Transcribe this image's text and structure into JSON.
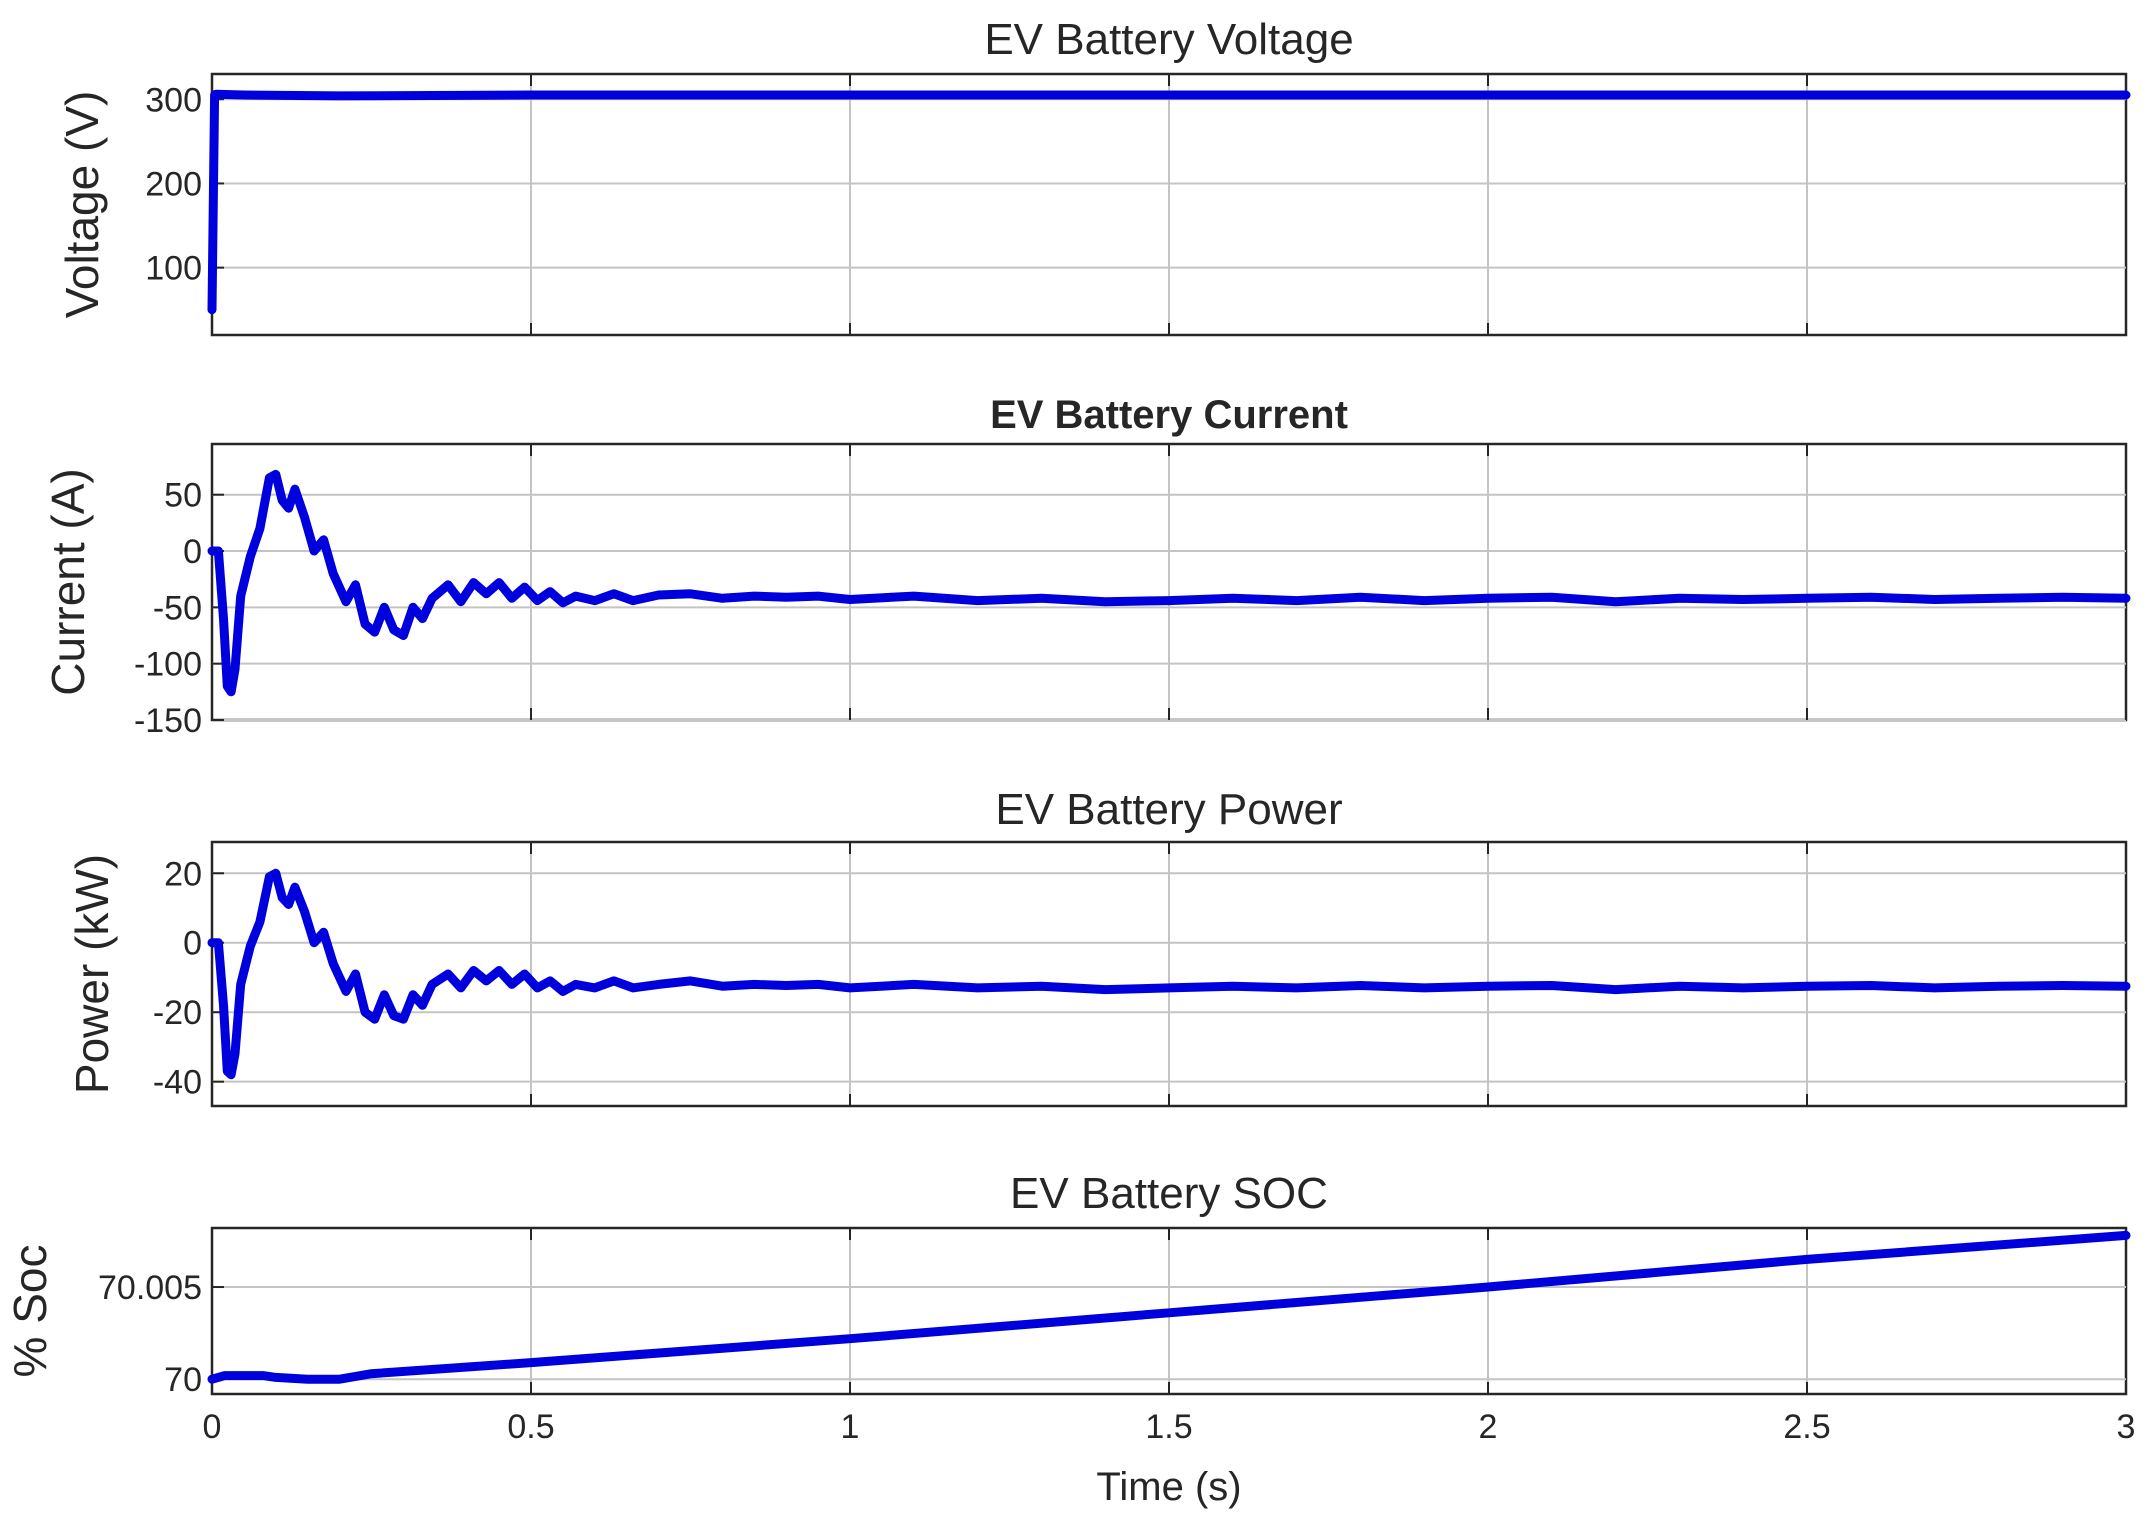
{
  "chart_data": [
    {
      "type": "line",
      "title": "EV Battery Voltage",
      "title_bold": false,
      "xlabel": "",
      "ylabel": "Voltage (V)",
      "xlim": [
        0,
        3
      ],
      "ylim": [
        20,
        330
      ],
      "xticks": [
        0,
        0.5,
        1,
        1.5,
        2,
        2.5,
        3
      ],
      "xticklabels": [],
      "yticks": [
        100,
        200,
        300
      ],
      "yticklabels": [
        "100",
        "200",
        "300"
      ],
      "grid": true,
      "color": "#0000dd",
      "x": [
        0,
        0.004,
        0.006,
        0.05,
        0.2,
        0.5,
        1,
        1.5,
        2,
        2.5,
        3
      ],
      "y": [
        50,
        305,
        306,
        305,
        304,
        305,
        305,
        305,
        305,
        305,
        305
      ]
    },
    {
      "type": "line",
      "title": "EV Battery Current",
      "title_bold": true,
      "xlabel": "",
      "ylabel": "Current (A)",
      "xlim": [
        0,
        3
      ],
      "ylim": [
        -150,
        95
      ],
      "xticks": [
        0,
        0.5,
        1,
        1.5,
        2,
        2.5,
        3
      ],
      "xticklabels": [],
      "yticks": [
        -150,
        -100,
        -50,
        0,
        50
      ],
      "yticklabels": [
        "-150",
        "-100",
        "-50",
        "0",
        "50"
      ],
      "grid": true,
      "color": "#0000dd",
      "x": [
        0,
        0.01,
        0.018,
        0.024,
        0.03,
        0.036,
        0.045,
        0.06,
        0.075,
        0.09,
        0.1,
        0.11,
        0.12,
        0.13,
        0.145,
        0.16,
        0.175,
        0.19,
        0.21,
        0.225,
        0.24,
        0.255,
        0.27,
        0.285,
        0.3,
        0.315,
        0.33,
        0.345,
        0.37,
        0.39,
        0.41,
        0.43,
        0.45,
        0.47,
        0.49,
        0.51,
        0.53,
        0.55,
        0.57,
        0.6,
        0.63,
        0.66,
        0.7,
        0.75,
        0.8,
        0.85,
        0.9,
        0.95,
        1.0,
        1.1,
        1.2,
        1.3,
        1.4,
        1.5,
        1.6,
        1.7,
        1.8,
        1.9,
        2.0,
        2.1,
        2.2,
        2.3,
        2.4,
        2.5,
        2.6,
        2.7,
        2.8,
        2.9,
        3.0
      ],
      "y": [
        0,
        0,
        -60,
        -120,
        -125,
        -105,
        -40,
        -5,
        20,
        65,
        68,
        45,
        38,
        55,
        30,
        0,
        10,
        -20,
        -45,
        -30,
        -65,
        -72,
        -50,
        -70,
        -75,
        -50,
        -60,
        -42,
        -30,
        -45,
        -28,
        -38,
        -28,
        -42,
        -32,
        -44,
        -36,
        -46,
        -40,
        -44,
        -38,
        -44,
        -39,
        -38,
        -42,
        -40,
        -41,
        -40,
        -43,
        -40,
        -44,
        -42,
        -45,
        -44,
        -42,
        -44,
        -41,
        -44,
        -42,
        -41,
        -45,
        -42,
        -43,
        -42,
        -41,
        -43,
        -42,
        -41,
        -42
      ]
    },
    {
      "type": "line",
      "title": "EV Battery Power",
      "title_bold": false,
      "xlabel": "",
      "ylabel": "Power (kW)",
      "xlim": [
        0,
        3
      ],
      "ylim": [
        -47,
        29
      ],
      "xticks": [
        0,
        0.5,
        1,
        1.5,
        2,
        2.5,
        3
      ],
      "xticklabels": [],
      "yticks": [
        -40,
        -20,
        0,
        20
      ],
      "yticklabels": [
        "-40",
        "-20",
        "0",
        "20"
      ],
      "grid": true,
      "color": "#0000dd",
      "x": [
        0,
        0.01,
        0.018,
        0.024,
        0.03,
        0.036,
        0.045,
        0.06,
        0.075,
        0.09,
        0.1,
        0.11,
        0.12,
        0.13,
        0.145,
        0.16,
        0.175,
        0.19,
        0.21,
        0.225,
        0.24,
        0.255,
        0.27,
        0.285,
        0.3,
        0.315,
        0.33,
        0.345,
        0.37,
        0.39,
        0.41,
        0.43,
        0.45,
        0.47,
        0.49,
        0.51,
        0.53,
        0.55,
        0.57,
        0.6,
        0.63,
        0.66,
        0.7,
        0.75,
        0.8,
        0.85,
        0.9,
        0.95,
        1.0,
        1.1,
        1.2,
        1.3,
        1.4,
        1.5,
        1.6,
        1.7,
        1.8,
        1.9,
        2.0,
        2.1,
        2.2,
        2.3,
        2.4,
        2.5,
        2.6,
        2.7,
        2.8,
        2.9,
        3.0
      ],
      "y": [
        0,
        0,
        -18,
        -37,
        -38,
        -32,
        -12,
        -1,
        6,
        19,
        20,
        13,
        11,
        16,
        9,
        0,
        3,
        -6,
        -14,
        -9,
        -20,
        -22,
        -15,
        -21,
        -22,
        -15,
        -18,
        -12,
        -9,
        -13,
        -8,
        -11,
        -8,
        -12,
        -9,
        -13,
        -11,
        -14,
        -12,
        -13,
        -11,
        -13,
        -12,
        -11,
        -12.5,
        -12,
        -12.3,
        -12,
        -13,
        -12,
        -13,
        -12.5,
        -13.5,
        -13,
        -12.5,
        -13,
        -12.3,
        -13,
        -12.5,
        -12.3,
        -13.5,
        -12.5,
        -13,
        -12.5,
        -12.3,
        -13,
        -12.5,
        -12.3,
        -12.5
      ]
    },
    {
      "type": "line",
      "title": "EV Battery SOC",
      "title_bold": false,
      "xlabel": "Time (s)",
      "ylabel": "% Soc",
      "xlim": [
        0,
        3
      ],
      "ylim": [
        69.9992,
        70.0082
      ],
      "xticks": [
        0,
        0.5,
        1,
        1.5,
        2,
        2.5,
        3
      ],
      "xticklabels": [
        "0",
        "0.5",
        "1",
        "1.5",
        "2",
        "2.5",
        "3"
      ],
      "yticks": [
        70,
        70.005
      ],
      "yticklabels": [
        "70",
        "70.005"
      ],
      "grid": true,
      "color": "#0000dd",
      "x": [
        0,
        0.02,
        0.08,
        0.1,
        0.15,
        0.2,
        0.25,
        0.5,
        1,
        1.5,
        2,
        2.5,
        3
      ],
      "y": [
        70.0,
        70.0002,
        70.0002,
        70.0001,
        70.0,
        70.0,
        70.0003,
        70.0009,
        70.0022,
        70.0036,
        70.005,
        70.0065,
        70.0078
      ]
    }
  ]
}
